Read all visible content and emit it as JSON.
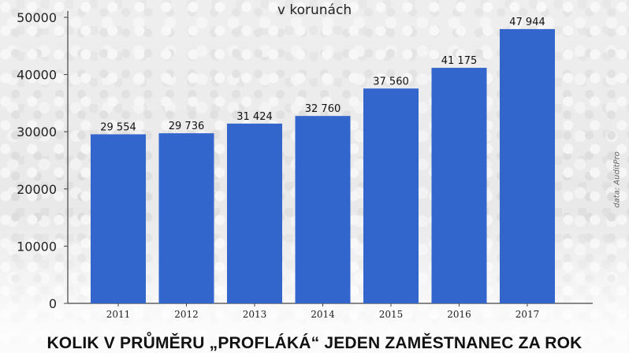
{
  "chart_data": {
    "type": "bar",
    "subtitle": "v korunách",
    "title": "KOLIK V PRŮMĚRU „PROFLÁKÁ“ JEDEN ZAMĚSTNANEC ZA ROK",
    "categories": [
      "2011",
      "2012",
      "2013",
      "2014",
      "2015",
      "2016",
      "2017"
    ],
    "values": [
      29554,
      29736,
      31424,
      32760,
      37560,
      41175,
      47944
    ],
    "value_labels": [
      "29 554",
      "29 736",
      "31 424",
      "32 760",
      "37 560",
      "41 175",
      "47 944"
    ],
    "y_ticks": [
      0,
      10000,
      20000,
      30000,
      40000,
      50000
    ],
    "ylim": [
      0,
      50000
    ],
    "grid": false,
    "bar_color": "#3366cc"
  },
  "source": "data: AuditPro"
}
